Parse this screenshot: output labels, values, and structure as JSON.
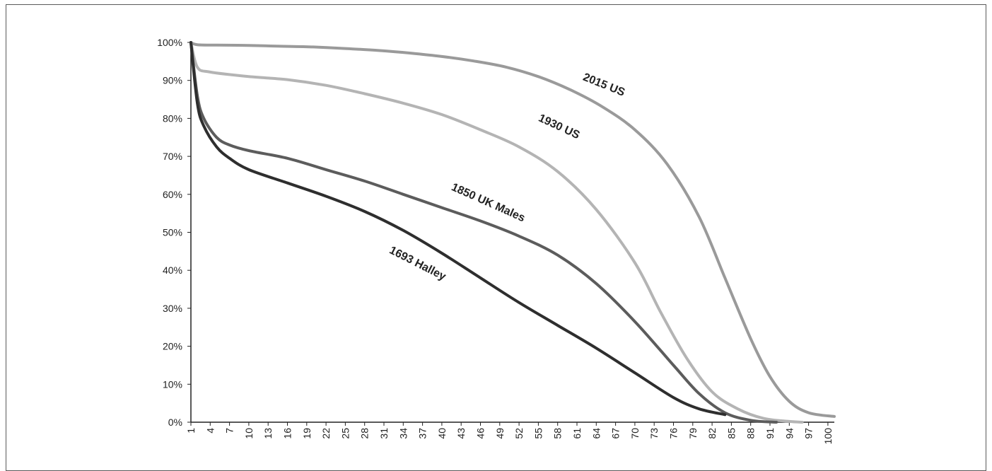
{
  "chart_data": {
    "type": "line",
    "title": "",
    "xlabel": "",
    "ylabel": "",
    "xlim": [
      1,
      101
    ],
    "ylim": [
      0,
      100
    ],
    "x_ticks": [
      "1",
      "4",
      "7",
      "10",
      "13",
      "16",
      "19",
      "22",
      "25",
      "28",
      "31",
      "34",
      "37",
      "40",
      "43",
      "46",
      "49",
      "52",
      "55",
      "58",
      "61",
      "64",
      "67",
      "70",
      "73",
      "76",
      "79",
      "82",
      "85",
      "88",
      "91",
      "94",
      "97",
      "100"
    ],
    "y_ticks": [
      "0%",
      "10%",
      "20%",
      "30%",
      "40%",
      "50%",
      "60%",
      "70%",
      "80%",
      "90%",
      "100%"
    ],
    "grid": false,
    "legend": "none",
    "series": [
      {
        "name": "2015 US",
        "color": "#9a9a9a",
        "points": [
          [
            1,
            100
          ],
          [
            2,
            99.4
          ],
          [
            5,
            99.3
          ],
          [
            10,
            99.2
          ],
          [
            15,
            99.0
          ],
          [
            20,
            98.8
          ],
          [
            25,
            98.4
          ],
          [
            30,
            97.9
          ],
          [
            35,
            97.2
          ],
          [
            40,
            96.3
          ],
          [
            45,
            95.1
          ],
          [
            50,
            93.5
          ],
          [
            55,
            91.0
          ],
          [
            60,
            87.5
          ],
          [
            65,
            83.0
          ],
          [
            70,
            77.0
          ],
          [
            75,
            68.0
          ],
          [
            80,
            54.0
          ],
          [
            84,
            38.0
          ],
          [
            88,
            22.0
          ],
          [
            91,
            12.0
          ],
          [
            94,
            5.5
          ],
          [
            97,
            2.5
          ],
          [
            101,
            1.5
          ]
        ]
      },
      {
        "name": "1930 US",
        "color": "#b4b4b4",
        "points": [
          [
            1,
            100
          ],
          [
            2,
            93.5
          ],
          [
            4,
            92.2
          ],
          [
            10,
            91.0
          ],
          [
            16,
            90.2
          ],
          [
            22,
            88.7
          ],
          [
            28,
            86.5
          ],
          [
            34,
            84.0
          ],
          [
            40,
            81.0
          ],
          [
            46,
            77.0
          ],
          [
            52,
            72.5
          ],
          [
            58,
            66.0
          ],
          [
            64,
            56.0
          ],
          [
            70,
            42.0
          ],
          [
            74,
            29.0
          ],
          [
            78,
            17.0
          ],
          [
            82,
            8.0
          ],
          [
            86,
            3.5
          ],
          [
            90,
            1.0
          ],
          [
            94,
            0.2
          ],
          [
            96,
            0
          ]
        ]
      },
      {
        "name": "1850 UK Males",
        "color": "#5c5c5c",
        "points": [
          [
            1,
            100
          ],
          [
            2,
            86.0
          ],
          [
            3,
            80.0
          ],
          [
            5,
            75.0
          ],
          [
            7,
            73.0
          ],
          [
            10,
            71.5
          ],
          [
            16,
            69.5
          ],
          [
            22,
            66.5
          ],
          [
            28,
            63.5
          ],
          [
            34,
            60.0
          ],
          [
            40,
            56.5
          ],
          [
            46,
            53.0
          ],
          [
            52,
            49.0
          ],
          [
            58,
            44.0
          ],
          [
            64,
            36.5
          ],
          [
            70,
            26.5
          ],
          [
            76,
            15.0
          ],
          [
            80,
            7.5
          ],
          [
            84,
            2.5
          ],
          [
            88,
            0.5
          ],
          [
            92,
            0
          ]
        ]
      },
      {
        "name": "1693 Halley",
        "color": "#2e2e2e",
        "points": [
          [
            1,
            100
          ],
          [
            2,
            84.0
          ],
          [
            3,
            78.0
          ],
          [
            5,
            72.5
          ],
          [
            7,
            69.5
          ],
          [
            10,
            66.5
          ],
          [
            16,
            63.0
          ],
          [
            22,
            59.5
          ],
          [
            28,
            55.5
          ],
          [
            34,
            50.5
          ],
          [
            40,
            44.5
          ],
          [
            46,
            38.0
          ],
          [
            52,
            31.5
          ],
          [
            58,
            25.5
          ],
          [
            64,
            19.5
          ],
          [
            70,
            13.0
          ],
          [
            76,
            6.5
          ],
          [
            80,
            3.5
          ],
          [
            84,
            2.0
          ]
        ]
      }
    ],
    "annotations": [
      {
        "text": "2015 US",
        "series": "2015 US",
        "at_x": 65,
        "at_y": 88,
        "angle": 22
      },
      {
        "text": "1930 US",
        "series": "1930 US",
        "at_x": 58,
        "at_y": 77,
        "angle": 25
      },
      {
        "text": "1850 UK Males",
        "series": "1850 UK Males",
        "at_x": 47,
        "at_y": 57,
        "angle": 24
      },
      {
        "text": "1693 Halley",
        "series": "1693 Halley",
        "at_x": 36,
        "at_y": 41,
        "angle": 27
      }
    ]
  }
}
